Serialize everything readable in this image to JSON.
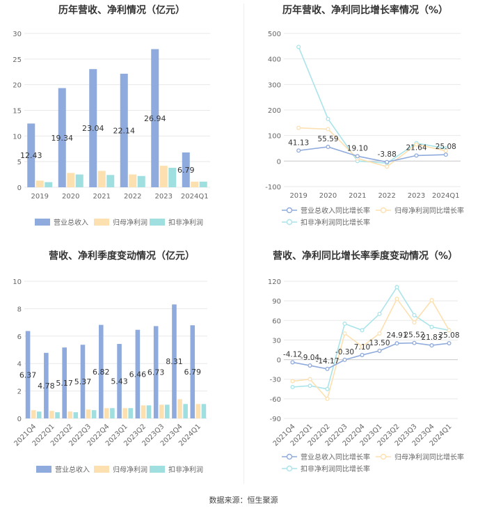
{
  "source": "数据来源：恒生聚源",
  "colors": {
    "revenue": "#8faadc",
    "parent_profit": "#fde0b0",
    "deducted_profit": "#9fdfe0",
    "line_revenue": "#8faadc",
    "line_parent": "#fde0b0",
    "line_deducted": "#a9e4ea",
    "grid": "#e8e8e8",
    "axis_text": "#666666",
    "label_text": "#333333"
  },
  "chart_data": [
    {
      "id": "annual-bars",
      "type": "bar",
      "title": "历年营收、净利情况（亿元）",
      "categories": [
        "2019",
        "2020",
        "2021",
        "2022",
        "2023",
        "2024Q1"
      ],
      "ylim": [
        0,
        30
      ],
      "yticks": [
        0,
        5,
        10,
        15,
        20,
        25,
        30
      ],
      "series": [
        {
          "name": "营业总收入",
          "values": [
            12.43,
            19.34,
            23.04,
            22.14,
            26.94,
            6.79
          ],
          "labels": [
            "12.43",
            "19.34",
            "23.04",
            "22.14",
            "26.94",
            "6.79"
          ]
        },
        {
          "name": "归母净利润",
          "values": [
            1.3,
            2.8,
            3.2,
            2.5,
            4.2,
            1.1
          ]
        },
        {
          "name": "扣非净利润",
          "values": [
            1.0,
            2.5,
            2.4,
            2.2,
            3.8,
            1.1
          ]
        }
      ]
    },
    {
      "id": "annual-growth",
      "type": "line",
      "title": "历年营收、净利同比增长率情况（%）",
      "categories": [
        "2019",
        "2020",
        "2021",
        "2022",
        "2023",
        "2024Q1"
      ],
      "ylim": [
        -100,
        500
      ],
      "yticks": [
        -100,
        0,
        100,
        200,
        300,
        400,
        500
      ],
      "series": [
        {
          "name": "营业总收入同比增长率",
          "values": [
            41.13,
            55.59,
            19.1,
            -3.88,
            21.64,
            25.08
          ],
          "labels": [
            "41.13",
            "55.59",
            "19.10",
            "-3.88",
            "21.64",
            "25.08"
          ]
        },
        {
          "name": "归母净利润同比增长率",
          "values": [
            130,
            125,
            10,
            -22,
            65,
            40
          ]
        },
        {
          "name": "扣非净利润同比增长率",
          "values": [
            447,
            165,
            0,
            -8,
            70,
            50
          ]
        }
      ]
    },
    {
      "id": "quarterly-bars",
      "type": "bar",
      "title": "营收、净利季度变动情况（亿元）",
      "categories": [
        "2021Q4",
        "2022Q1",
        "2022Q2",
        "2022Q3",
        "2022Q4",
        "2023Q1",
        "2023Q2",
        "2023Q3",
        "2023Q4",
        "2024Q1"
      ],
      "ylim": [
        0,
        10
      ],
      "yticks": [
        0,
        2,
        4,
        6,
        8,
        10
      ],
      "series": [
        {
          "name": "营业总收入",
          "values": [
            6.37,
            4.78,
            5.17,
            5.37,
            6.82,
            5.43,
            6.46,
            6.73,
            8.31,
            6.79
          ],
          "labels": [
            "6.37",
            "4.78",
            "5.17",
            "5.37",
            "6.82",
            "5.43",
            "6.46",
            "6.73",
            "8.31",
            "6.79"
          ]
        },
        {
          "name": "归母净利润",
          "values": [
            0.6,
            0.55,
            0.5,
            0.65,
            0.75,
            0.75,
            0.95,
            1.0,
            1.4,
            1.05
          ]
        },
        {
          "name": "扣非净利润",
          "values": [
            0.5,
            0.45,
            0.45,
            0.6,
            0.75,
            0.75,
            0.95,
            1.0,
            1.05,
            1.05
          ]
        }
      ]
    },
    {
      "id": "quarterly-growth",
      "type": "line",
      "title": "营收、净利同比增长率季度变动情况（%）",
      "categories": [
        "2021Q4",
        "2022Q1",
        "2022Q2",
        "2022Q3",
        "2022Q4",
        "2023Q1",
        "2023Q2",
        "2023Q3",
        "2023Q4",
        "2024Q1"
      ],
      "ylim": [
        -90,
        120
      ],
      "yticks": [
        -90,
        -60,
        -30,
        0,
        30,
        60,
        90,
        120
      ],
      "series": [
        {
          "name": "营业总收入同比增长率",
          "values": [
            -4.12,
            -9.04,
            -14.17,
            -0.3,
            7.1,
            13.5,
            24.91,
            25.52,
            21.83,
            25.08
          ],
          "labels": [
            "-4.12",
            "-9.04",
            "-14.17",
            "-0.30",
            "7.10",
            "13.50",
            "24.91",
            "25.52",
            "21.83",
            "25.08"
          ]
        },
        {
          "name": "归母净利润同比增长率",
          "values": [
            -33,
            -30,
            -60,
            40,
            20,
            40,
            93,
            57,
            91,
            45
          ]
        },
        {
          "name": "扣非净利润同比增长率",
          "values": [
            -42,
            -40,
            -45,
            55,
            45,
            70,
            111,
            68,
            50,
            45
          ]
        }
      ]
    }
  ]
}
